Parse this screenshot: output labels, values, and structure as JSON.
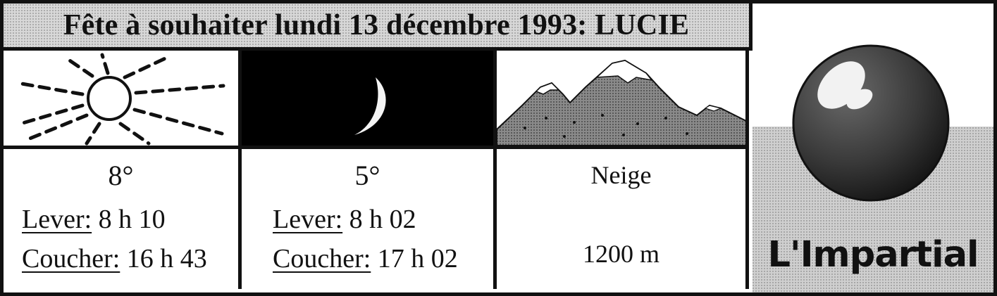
{
  "header": {
    "title": "Fête à souhaiter lundi 13 décembre 1993: LUCIE"
  },
  "icons": {
    "day": "sun-icon",
    "night": "moon-icon",
    "mountain": "mountain-icon"
  },
  "day": {
    "temperature": "8°",
    "sunrise_label": "Lever:",
    "sunrise_time": "8 h 10",
    "sunset_label": "Coucher:",
    "sunset_time": "16 h 43"
  },
  "night": {
    "temperature": "5°",
    "moonrise_label": "Lever:",
    "moonrise_time": "8 h 02",
    "moonset_label": "Coucher:",
    "moonset_time": "17 h 02"
  },
  "mountain": {
    "condition": "Neige",
    "altitude": "1200 m"
  },
  "logo": {
    "name": "L'Impartial"
  },
  "colors": {
    "ink": "#111111",
    "paper": "#ffffff",
    "halftone": "#c8c8c8"
  }
}
